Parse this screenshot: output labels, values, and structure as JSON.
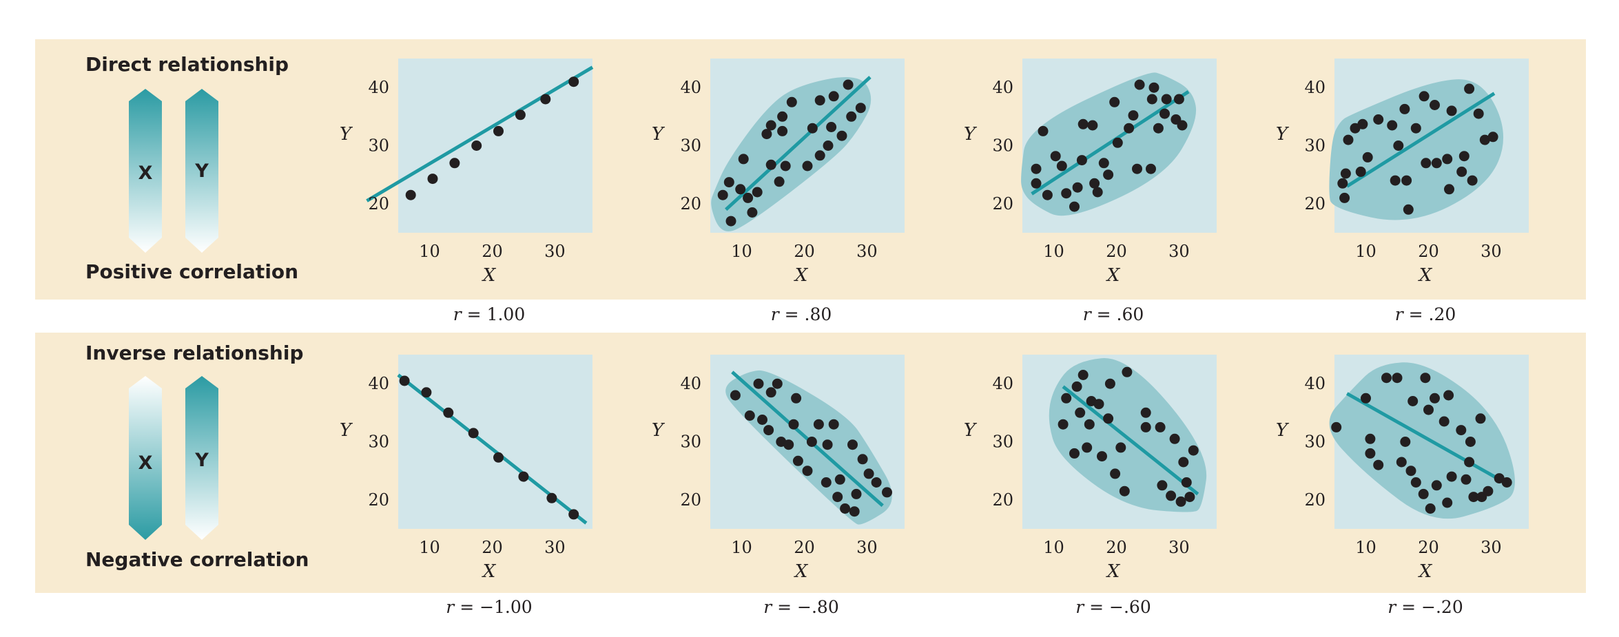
{
  "colors": {
    "band": "#f8ebd1",
    "plot_bg": "#d2e6ea",
    "blob": "#96c9cf",
    "line": "#1f9aa3",
    "dot": "#231f20",
    "arrow": "#2b9ba3"
  },
  "rows": [
    {
      "title": "Direct relationship",
      "subtitle": "Positive correlation",
      "arrows": [
        {
          "label": "X",
          "direction": "up"
        },
        {
          "label": "Y",
          "direction": "up"
        }
      ]
    },
    {
      "title": "Inverse relationship",
      "subtitle": "Negative correlation",
      "arrows": [
        {
          "label": "X",
          "direction": "down"
        },
        {
          "label": "Y",
          "direction": "up"
        }
      ]
    }
  ],
  "chart_data": [
    {
      "type": "scatter",
      "r_symbol": "r",
      "r_value": "= 1.00",
      "xlabel": "X",
      "ylabel": "Y",
      "xlim": [
        5,
        36
      ],
      "ylim": [
        15,
        45
      ],
      "xticks": [
        10,
        20,
        30
      ],
      "yticks": [
        20,
        30,
        40
      ],
      "trend": [
        [
          0,
          20.5
        ],
        [
          36,
          43.5
        ]
      ],
      "blob": false,
      "points": [
        [
          7,
          21.5
        ],
        [
          10.5,
          24.3
        ],
        [
          14,
          27
        ],
        [
          17.5,
          30
        ],
        [
          21,
          32.5
        ],
        [
          24.5,
          35.3
        ],
        [
          28.5,
          38
        ],
        [
          33,
          41
        ]
      ]
    },
    {
      "type": "scatter",
      "r_symbol": "r",
      "r_value": "= .80",
      "xlabel": "X",
      "ylabel": "Y",
      "xlim": [
        5,
        36
      ],
      "ylim": [
        15,
        45
      ],
      "xticks": [
        10,
        20,
        30
      ],
      "yticks": [
        20,
        30,
        40
      ],
      "trend": [
        [
          7.5,
          19
        ],
        [
          30.5,
          41.8
        ]
      ],
      "blob": true,
      "points": [
        [
          7,
          21.5
        ],
        [
          8,
          23.7
        ],
        [
          8.3,
          17
        ],
        [
          9.8,
          22.5
        ],
        [
          10.3,
          27.7
        ],
        [
          11,
          21
        ],
        [
          11.7,
          18.5
        ],
        [
          12.5,
          22
        ],
        [
          14,
          32
        ],
        [
          14.7,
          26.7
        ],
        [
          14.7,
          33.5
        ],
        [
          16,
          23.8
        ],
        [
          16.5,
          32.5
        ],
        [
          16.5,
          35
        ],
        [
          17,
          26.5
        ],
        [
          18,
          37.5
        ],
        [
          20.5,
          26.5
        ],
        [
          21.3,
          33
        ],
        [
          22.5,
          28.3
        ],
        [
          22.5,
          37.8
        ],
        [
          23.8,
          30
        ],
        [
          24.3,
          33.2
        ],
        [
          24.7,
          38.5
        ],
        [
          26,
          31.7
        ],
        [
          27,
          40.5
        ],
        [
          27.5,
          35
        ],
        [
          29,
          36.5
        ]
      ]
    },
    {
      "type": "scatter",
      "r_symbol": "r",
      "r_value": "= .60",
      "xlabel": "X",
      "ylabel": "Y",
      "xlim": [
        5,
        36
      ],
      "ylim": [
        15,
        45
      ],
      "xticks": [
        10,
        20,
        30
      ],
      "yticks": [
        20,
        30,
        40
      ],
      "trend": [
        [
          6.5,
          21.7
        ],
        [
          31.5,
          39.3
        ]
      ],
      "blob": true,
      "points": [
        [
          7.2,
          23.5
        ],
        [
          7.2,
          26
        ],
        [
          8.3,
          32.5
        ],
        [
          9,
          21.5
        ],
        [
          10.3,
          28.2
        ],
        [
          11.3,
          26.5
        ],
        [
          12,
          21.8
        ],
        [
          13.3,
          19.5
        ],
        [
          13.8,
          22.8
        ],
        [
          14.5,
          27.5
        ],
        [
          14.7,
          33.7
        ],
        [
          16.2,
          33.5
        ],
        [
          16.5,
          23.5
        ],
        [
          17,
          22
        ],
        [
          18,
          27
        ],
        [
          18.7,
          25
        ],
        [
          19.7,
          37.5
        ],
        [
          20.2,
          30.5
        ],
        [
          22,
          33
        ],
        [
          22.7,
          35.2
        ],
        [
          23.3,
          26
        ],
        [
          23.7,
          40.5
        ],
        [
          25.5,
          26
        ],
        [
          25.7,
          38
        ],
        [
          26,
          40
        ],
        [
          26.7,
          33
        ],
        [
          27.7,
          35.5
        ],
        [
          28,
          38
        ],
        [
          29.5,
          34.5
        ],
        [
          30,
          38
        ],
        [
          30.5,
          33.5
        ]
      ]
    },
    {
      "type": "scatter",
      "r_symbol": "r",
      "r_value": "= .20",
      "xlabel": "X",
      "ylabel": "Y",
      "xlim": [
        5,
        36
      ],
      "ylim": [
        15,
        45
      ],
      "xticks": [
        10,
        20,
        30
      ],
      "yticks": [
        20,
        30,
        40
      ],
      "trend": [
        [
          7,
          23
        ],
        [
          30.5,
          39
        ]
      ],
      "blob": true,
      "points": [
        [
          6.3,
          23.5
        ],
        [
          6.6,
          21
        ],
        [
          6.8,
          25.2
        ],
        [
          7.2,
          31
        ],
        [
          8.3,
          33
        ],
        [
          9.2,
          25.5
        ],
        [
          9.5,
          33.7
        ],
        [
          10.3,
          28
        ],
        [
          12,
          34.5
        ],
        [
          14.2,
          33.5
        ],
        [
          14.7,
          24
        ],
        [
          15.2,
          30
        ],
        [
          16.2,
          36.3
        ],
        [
          16.5,
          24
        ],
        [
          16.8,
          19
        ],
        [
          18,
          33
        ],
        [
          19.3,
          38.5
        ],
        [
          19.6,
          27
        ],
        [
          21,
          37
        ],
        [
          21.3,
          27
        ],
        [
          23,
          27.7
        ],
        [
          23.3,
          22.5
        ],
        [
          23.7,
          36
        ],
        [
          25.3,
          25.5
        ],
        [
          25.7,
          28.2
        ],
        [
          26.5,
          39.8
        ],
        [
          27,
          24
        ],
        [
          28,
          35.5
        ],
        [
          29,
          31
        ],
        [
          30.3,
          31.5
        ]
      ]
    },
    {
      "type": "scatter",
      "r_symbol": "r",
      "r_value": "= −1.00",
      "xlabel": "X",
      "ylabel": "Y",
      "xlim": [
        5,
        36
      ],
      "ylim": [
        15,
        45
      ],
      "xticks": [
        10,
        20,
        30
      ],
      "yticks": [
        20,
        30,
        40
      ],
      "trend": [
        [
          5,
          41.5
        ],
        [
          35,
          16
        ]
      ],
      "blob": false,
      "points": [
        [
          6,
          40.5
        ],
        [
          9.5,
          38.5
        ],
        [
          13,
          35
        ],
        [
          17,
          31.5
        ],
        [
          21,
          27.3
        ],
        [
          25,
          24
        ],
        [
          29.5,
          20.3
        ],
        [
          33,
          17.5
        ]
      ]
    },
    {
      "type": "scatter",
      "r_symbol": "r",
      "r_value": "= −.80",
      "xlabel": "X",
      "ylabel": "Y",
      "xlim": [
        5,
        36
      ],
      "ylim": [
        15,
        45
      ],
      "xticks": [
        10,
        20,
        30
      ],
      "yticks": [
        20,
        30,
        40
      ],
      "trend": [
        [
          8.5,
          42
        ],
        [
          32.5,
          19
        ]
      ],
      "blob": true,
      "points": [
        [
          9,
          38
        ],
        [
          11.3,
          34.5
        ],
        [
          12.7,
          40
        ],
        [
          13.3,
          33.8
        ],
        [
          14.3,
          32
        ],
        [
          14.7,
          38.5
        ],
        [
          15.7,
          40
        ],
        [
          16.3,
          30
        ],
        [
          17.5,
          29.5
        ],
        [
          18.3,
          33
        ],
        [
          18.7,
          37.5
        ],
        [
          19,
          26.7
        ],
        [
          20.5,
          25
        ],
        [
          21.2,
          30
        ],
        [
          22.3,
          33
        ],
        [
          23.5,
          23
        ],
        [
          23.7,
          29.5
        ],
        [
          24.7,
          33
        ],
        [
          25.3,
          20.5
        ],
        [
          25.7,
          23.5
        ],
        [
          26.5,
          18.5
        ],
        [
          27.7,
          29.5
        ],
        [
          28,
          18
        ],
        [
          28.3,
          21
        ],
        [
          29.3,
          27
        ],
        [
          30.3,
          24.5
        ],
        [
          31.5,
          23
        ],
        [
          33.2,
          21.3
        ]
      ]
    },
    {
      "type": "scatter",
      "r_symbol": "r",
      "r_value": "= −.60",
      "xlabel": "X",
      "ylabel": "Y",
      "xlim": [
        5,
        36
      ],
      "ylim": [
        15,
        45
      ],
      "xticks": [
        10,
        20,
        30
      ],
      "yticks": [
        20,
        30,
        40
      ],
      "trend": [
        [
          11.5,
          39.5
        ],
        [
          33,
          21
        ]
      ],
      "blob": true,
      "points": [
        [
          11.5,
          33
        ],
        [
          12,
          37.5
        ],
        [
          13.3,
          28
        ],
        [
          13.7,
          39.5
        ],
        [
          14.2,
          35
        ],
        [
          14.7,
          41.5
        ],
        [
          15.3,
          29
        ],
        [
          15.7,
          33
        ],
        [
          16,
          37
        ],
        [
          17.2,
          36.5
        ],
        [
          17.7,
          27.5
        ],
        [
          18.7,
          34
        ],
        [
          19,
          40
        ],
        [
          19.8,
          24.5
        ],
        [
          20.7,
          29
        ],
        [
          21.3,
          21.5
        ],
        [
          21.7,
          42
        ],
        [
          24.7,
          35
        ],
        [
          24.7,
          32.5
        ],
        [
          27,
          32.5
        ],
        [
          27.3,
          22.5
        ],
        [
          28.7,
          20.7
        ],
        [
          29.3,
          30.5
        ],
        [
          30.3,
          19.7
        ],
        [
          30.7,
          26.5
        ],
        [
          31.2,
          23
        ],
        [
          31.7,
          20.5
        ],
        [
          32.3,
          28.5
        ]
      ]
    },
    {
      "type": "scatter",
      "r_symbol": "r",
      "r_value": "= −.20",
      "xlabel": "X",
      "ylabel": "Y",
      "xlim": [
        5,
        36
      ],
      "ylim": [
        15,
        45
      ],
      "xticks": [
        10,
        20,
        30
      ],
      "yticks": [
        20,
        30,
        40
      ],
      "trend": [
        [
          7,
          38.3
        ],
        [
          33,
          22.5
        ]
      ],
      "blob": true,
      "points": [
        [
          5.3,
          32.5
        ],
        [
          10,
          37.5
        ],
        [
          10.7,
          28
        ],
        [
          10.7,
          30.5
        ],
        [
          12,
          26
        ],
        [
          13.3,
          41
        ],
        [
          15,
          41
        ],
        [
          15.7,
          26.5
        ],
        [
          16.3,
          30
        ],
        [
          17.2,
          25
        ],
        [
          17.5,
          37
        ],
        [
          18,
          23
        ],
        [
          19.2,
          21
        ],
        [
          19.5,
          41
        ],
        [
          20,
          35.5
        ],
        [
          20.3,
          18.5
        ],
        [
          21,
          37.5
        ],
        [
          21.3,
          22.5
        ],
        [
          22.5,
          33.5
        ],
        [
          23,
          19.5
        ],
        [
          23.2,
          38
        ],
        [
          23.7,
          24
        ],
        [
          25.2,
          32
        ],
        [
          26,
          23.5
        ],
        [
          26.5,
          26.5
        ],
        [
          26.7,
          30
        ],
        [
          27.2,
          20.5
        ],
        [
          28.3,
          34
        ],
        [
          28.5,
          20.5
        ],
        [
          29.5,
          21.5
        ],
        [
          31.3,
          23.7
        ],
        [
          32.5,
          23
        ]
      ]
    }
  ]
}
